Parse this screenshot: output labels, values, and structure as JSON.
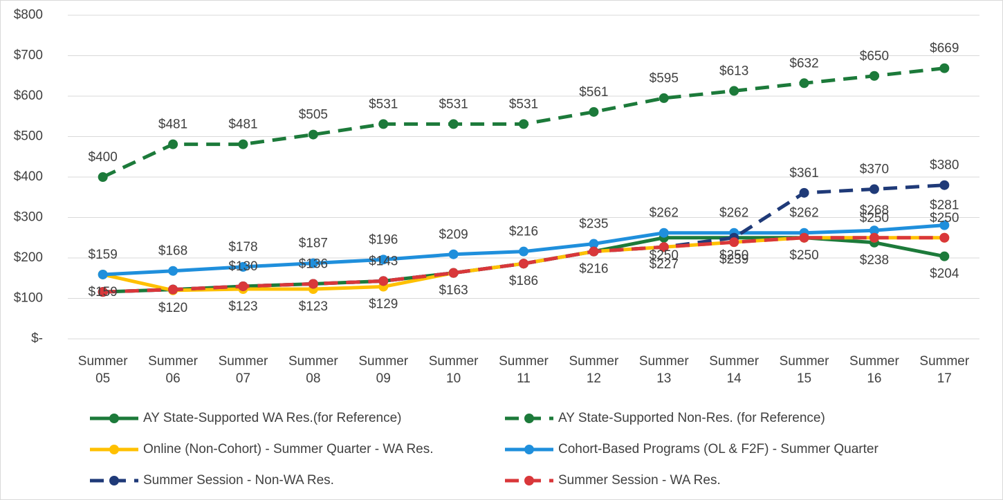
{
  "chart_data": {
    "type": "line",
    "categories": [
      "Summer 05",
      "Summer 06",
      "Summer 07",
      "Summer 08",
      "Summer 09",
      "Summer 10",
      "Summer 11",
      "Summer 12",
      "Summer 13",
      "Summer 14",
      "Summer 15",
      "Summer 16",
      "Summer 17"
    ],
    "ylim": [
      0,
      800
    ],
    "yticks": [
      {
        "value": 0,
        "label": "$-"
      },
      {
        "value": 100,
        "label": "$100"
      },
      {
        "value": 200,
        "label": "$200"
      },
      {
        "value": 300,
        "label": "$300"
      },
      {
        "value": 400,
        "label": "$400"
      },
      {
        "value": 500,
        "label": "$500"
      },
      {
        "value": 600,
        "label": "$600"
      },
      {
        "value": 700,
        "label": "$700"
      },
      {
        "value": 800,
        "label": "$800"
      }
    ],
    "grid": true,
    "legend": "bottom",
    "series": [
      {
        "name": "AY State-Supported WA Res.(for Reference)",
        "color": "#1c7a3a",
        "dash": false,
        "label_position": "below",
        "values": [
          116,
          122,
          130,
          136,
          143,
          163,
          186,
          216,
          250,
          250,
          250,
          238,
          204
        ],
        "value_labels": [
          null,
          null,
          null,
          null,
          null,
          null,
          null,
          null,
          "$250",
          "$250",
          null,
          "$238",
          "$204"
        ]
      },
      {
        "name": "AY State-Supported Non-Res. (for Reference)",
        "color": "#1c7a3a",
        "dash": true,
        "label_position": "above",
        "values": [
          400,
          481,
          481,
          505,
          531,
          531,
          531,
          561,
          595,
          613,
          632,
          650,
          669
        ],
        "value_labels": [
          "$400",
          "$481",
          "$481",
          "$505",
          "$531",
          "$531",
          "$531",
          "$561",
          "$595",
          "$613",
          "$632",
          "$650",
          "$669"
        ]
      },
      {
        "name": "Online (Non-Cohort) - Summer Quarter - WA Res.",
        "color": "#ffc000",
        "dash": false,
        "label_position": "below",
        "values": [
          159,
          120,
          123,
          123,
          129,
          163,
          186,
          216,
          227,
          239,
          250,
          250,
          250
        ],
        "value_labels": [
          "$159",
          "$120",
          "$123",
          "$123",
          "$129",
          "$163",
          "$186",
          "$216",
          "$227",
          "$239",
          "$250",
          null,
          null
        ]
      },
      {
        "name": "Cohort-Based Programs (OL & F2F) - Summer Quarter",
        "color": "#1f8fdc",
        "dash": false,
        "label_position": "above",
        "values": [
          159,
          168,
          178,
          187,
          196,
          209,
          216,
          235,
          262,
          262,
          262,
          268,
          281
        ],
        "value_labels": [
          "$159",
          "$168",
          "$178",
          "$187",
          "$196",
          "$209",
          "$216",
          "$235",
          "$262",
          "$262",
          "$262",
          "$268",
          "$281"
        ]
      },
      {
        "name": "Summer Session - Non-WA Res.",
        "color": "#1f3a78",
        "dash": true,
        "label_position": "above",
        "values": [
          116,
          122,
          130,
          136,
          143,
          163,
          186,
          216,
          227,
          250,
          361,
          370,
          380
        ],
        "value_labels": [
          null,
          null,
          null,
          null,
          null,
          null,
          null,
          null,
          null,
          null,
          "$361",
          "$370",
          "$380"
        ]
      },
      {
        "name": "Summer Session - WA Res.",
        "color": "#d9373a",
        "dash": true,
        "label_position": "above",
        "values": [
          116,
          122,
          130,
          136,
          143,
          163,
          186,
          216,
          227,
          239,
          250,
          250,
          250
        ],
        "value_labels": [
          null,
          null,
          "$130",
          "$136",
          "$143",
          null,
          null,
          null,
          null,
          null,
          null,
          "$250",
          "$250"
        ]
      }
    ]
  }
}
